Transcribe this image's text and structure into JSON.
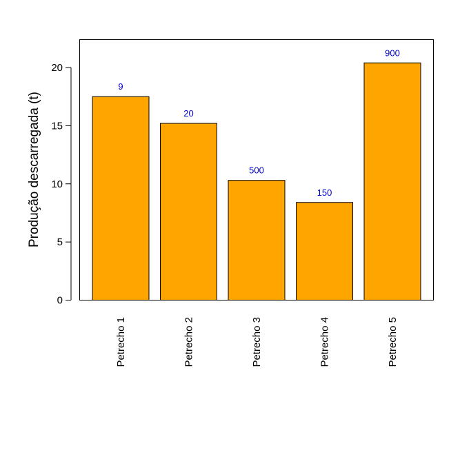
{
  "chart_data": {
    "type": "bar",
    "title": "",
    "xlabel": "",
    "ylabel": "Produção descarregada (t)",
    "categories": [
      "Petrecho 1",
      "Petrecho 2",
      "Petrecho 3",
      "Petrecho 4",
      "Petrecho 5"
    ],
    "values": [
      17.5,
      15.2,
      10.3,
      8.4,
      20.4
    ],
    "bar_labels": [
      "9",
      "20",
      "500",
      "150",
      "900"
    ],
    "ylim": [
      0,
      22.4
    ],
    "yticks": [
      "0",
      "5",
      "10",
      "15",
      "20"
    ],
    "grid": false,
    "legend": "none",
    "colors": {
      "bar_fill": "#FFA500",
      "bar_stroke": "#000000",
      "bar_label": "#0000CC",
      "axis": "#000000"
    }
  }
}
